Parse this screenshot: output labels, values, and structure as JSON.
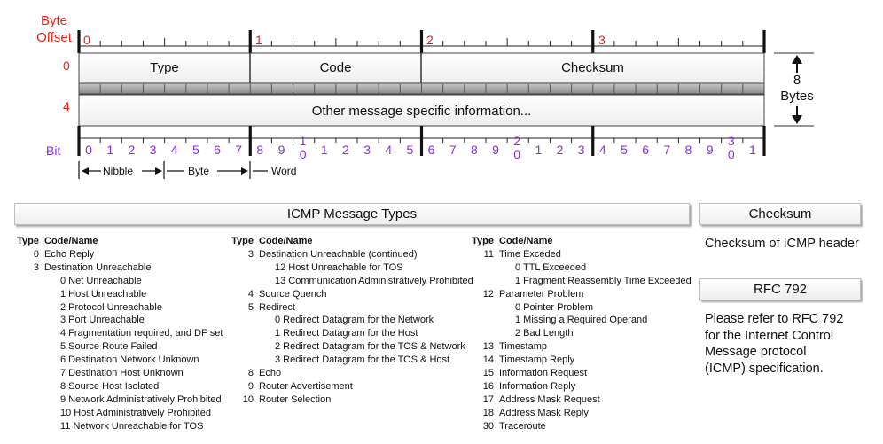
{
  "header": {
    "byte_offset_label_1": "Byte",
    "byte_offset_label_2": "Offset",
    "byte_marks": [
      "0",
      "1",
      "2",
      "3"
    ],
    "row_offsets": [
      "0",
      "4"
    ],
    "fields": {
      "type": "Type",
      "code": "Code",
      "checksum": "Checksum"
    },
    "other_info": "Other message specific information...",
    "size_number": "8",
    "size_unit": "Bytes",
    "bit_label": "Bit",
    "bit_numbers": [
      "0",
      "1",
      "2",
      "3",
      "4",
      "5",
      "6",
      "7",
      "8",
      "9",
      "1\n0",
      "1",
      "2",
      "3",
      "4",
      "5",
      "6",
      "7",
      "8",
      "9",
      "2\n0",
      "1",
      "2",
      "3",
      "4",
      "5",
      "6",
      "7",
      "8",
      "9",
      "3\n0",
      "1"
    ],
    "units": {
      "nibble": "Nibble",
      "byte": "Byte",
      "word": "Word"
    }
  },
  "types_panel": {
    "title": "ICMP Message Types",
    "col_type": "Type",
    "col_code": "Code/Name",
    "columns": [
      [
        {
          "t": "0",
          "n": "Echo Reply"
        },
        {
          "t": "3",
          "n": "Destination Unreachable"
        },
        {
          "t": "",
          "n": "0 Net Unreachable",
          "sub": true
        },
        {
          "t": "",
          "n": "1 Host Unreachable",
          "sub": true
        },
        {
          "t": "",
          "n": "2 Protocol Unreachable",
          "sub": true
        },
        {
          "t": "",
          "n": "3 Port Unreachable",
          "sub": true
        },
        {
          "t": "",
          "n": "4 Fragmentation required, and DF set",
          "sub": true
        },
        {
          "t": "",
          "n": "5 Source Route Failed",
          "sub": true
        },
        {
          "t": "",
          "n": "6 Destination Network Unknown",
          "sub": true
        },
        {
          "t": "",
          "n": "7 Destination Host Unknown",
          "sub": true
        },
        {
          "t": "",
          "n": "8 Source Host Isolated",
          "sub": true
        },
        {
          "t": "",
          "n": "9 Network Administratively Prohibited",
          "sub": true
        },
        {
          "t": "",
          "n": "10 Host Administratively Prohibited",
          "sub": true
        },
        {
          "t": "",
          "n": "11 Network Unreachable for TOS",
          "sub": true
        }
      ],
      [
        {
          "t": "3",
          "n": "Destination Unreachable (continued)"
        },
        {
          "t": "",
          "n": "12 Host Unreachable for TOS",
          "sub": true
        },
        {
          "t": "",
          "n": "13 Communication Administratively Prohibited",
          "sub": true
        },
        {
          "t": "4",
          "n": "Source Quench"
        },
        {
          "t": "5",
          "n": "Redirect"
        },
        {
          "t": "",
          "n": "0 Redirect Datagram for the Network",
          "sub": true
        },
        {
          "t": "",
          "n": "1 Redirect Datagram for the Host",
          "sub": true
        },
        {
          "t": "",
          "n": "2 Redirect Datagram for the TOS & Network",
          "sub": true
        },
        {
          "t": "",
          "n": "3 Redirect Datagram for the TOS & Host",
          "sub": true
        },
        {
          "t": "8",
          "n": "Echo"
        },
        {
          "t": "9",
          "n": "Router Advertisement"
        },
        {
          "t": "10",
          "n": "Router Selection"
        }
      ],
      [
        {
          "t": "11",
          "n": "Time Exceded"
        },
        {
          "t": "",
          "n": "0 TTL Exceeded",
          "sub": true
        },
        {
          "t": "",
          "n": "1 Fragment Reassembly Time Exceeded",
          "sub": true
        },
        {
          "t": "12",
          "n": "Parameter Problem"
        },
        {
          "t": "",
          "n": "0 Pointer Problem",
          "sub": true
        },
        {
          "t": "",
          "n": "1 Missing a Required Operand",
          "sub": true
        },
        {
          "t": "",
          "n": "2 Bad Length",
          "sub": true
        },
        {
          "t": "13",
          "n": "Timestamp"
        },
        {
          "t": "14",
          "n": "Timestamp Reply"
        },
        {
          "t": "15",
          "n": "Information Request"
        },
        {
          "t": "16",
          "n": "Information Reply"
        },
        {
          "t": "17",
          "n": "Address Mask Request"
        },
        {
          "t": "18",
          "n": "Address Mask Reply"
        },
        {
          "t": "30",
          "n": "Traceroute"
        }
      ]
    ]
  },
  "checksum_panel": {
    "title": "Checksum",
    "text": "Checksum of ICMP header"
  },
  "rfc_panel": {
    "title": "RFC 792",
    "text": "Please refer to RFC 792 for the Internet Control Message protocol (ICMP) specification."
  },
  "colors": {
    "offset": "#e2231a",
    "bits": "#8a2be2"
  }
}
